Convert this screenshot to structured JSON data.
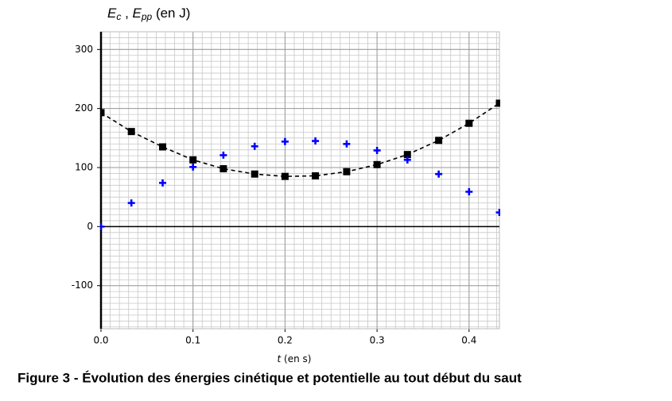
{
  "chart_data": {
    "type": "scatter",
    "ylabel": [
      "E",
      "c",
      " , ",
      "E",
      "pp",
      " (en J)"
    ],
    "xlabel": [
      "t",
      " (en s)"
    ],
    "caption": "Figure 3 - Évolution des énergies cinétique et potentielle au tout début du saut",
    "x": [
      0,
      0.033,
      0.067,
      0.1,
      0.133,
      0.167,
      0.2,
      0.233,
      0.267,
      0.3,
      0.333,
      0.367,
      0.4,
      0.433
    ],
    "series": [
      {
        "color": "#000000",
        "marker": "square",
        "line": "dashed",
        "values": [
          193,
          161,
          135,
          113,
          98,
          89,
          85,
          86,
          93,
          105,
          122,
          146,
          175,
          209
        ]
      },
      {
        "color": "#0000ff",
        "marker": "plus",
        "values": [
          0,
          40,
          74,
          101,
          121,
          136,
          144,
          145,
          140,
          129,
          113,
          89,
          59,
          24
        ]
      }
    ],
    "xlim": [
      0,
      0.433
    ],
    "ylim": [
      -173,
      330
    ],
    "xticks": [
      {
        "value": 0,
        "label": "0.0"
      },
      0.1,
      0.2,
      0.3,
      0.4
    ],
    "yticks": [
      -100,
      0,
      100,
      200,
      300
    ],
    "grid": true,
    "minor_grid": {
      "x": 0.01,
      "y": 10
    }
  }
}
